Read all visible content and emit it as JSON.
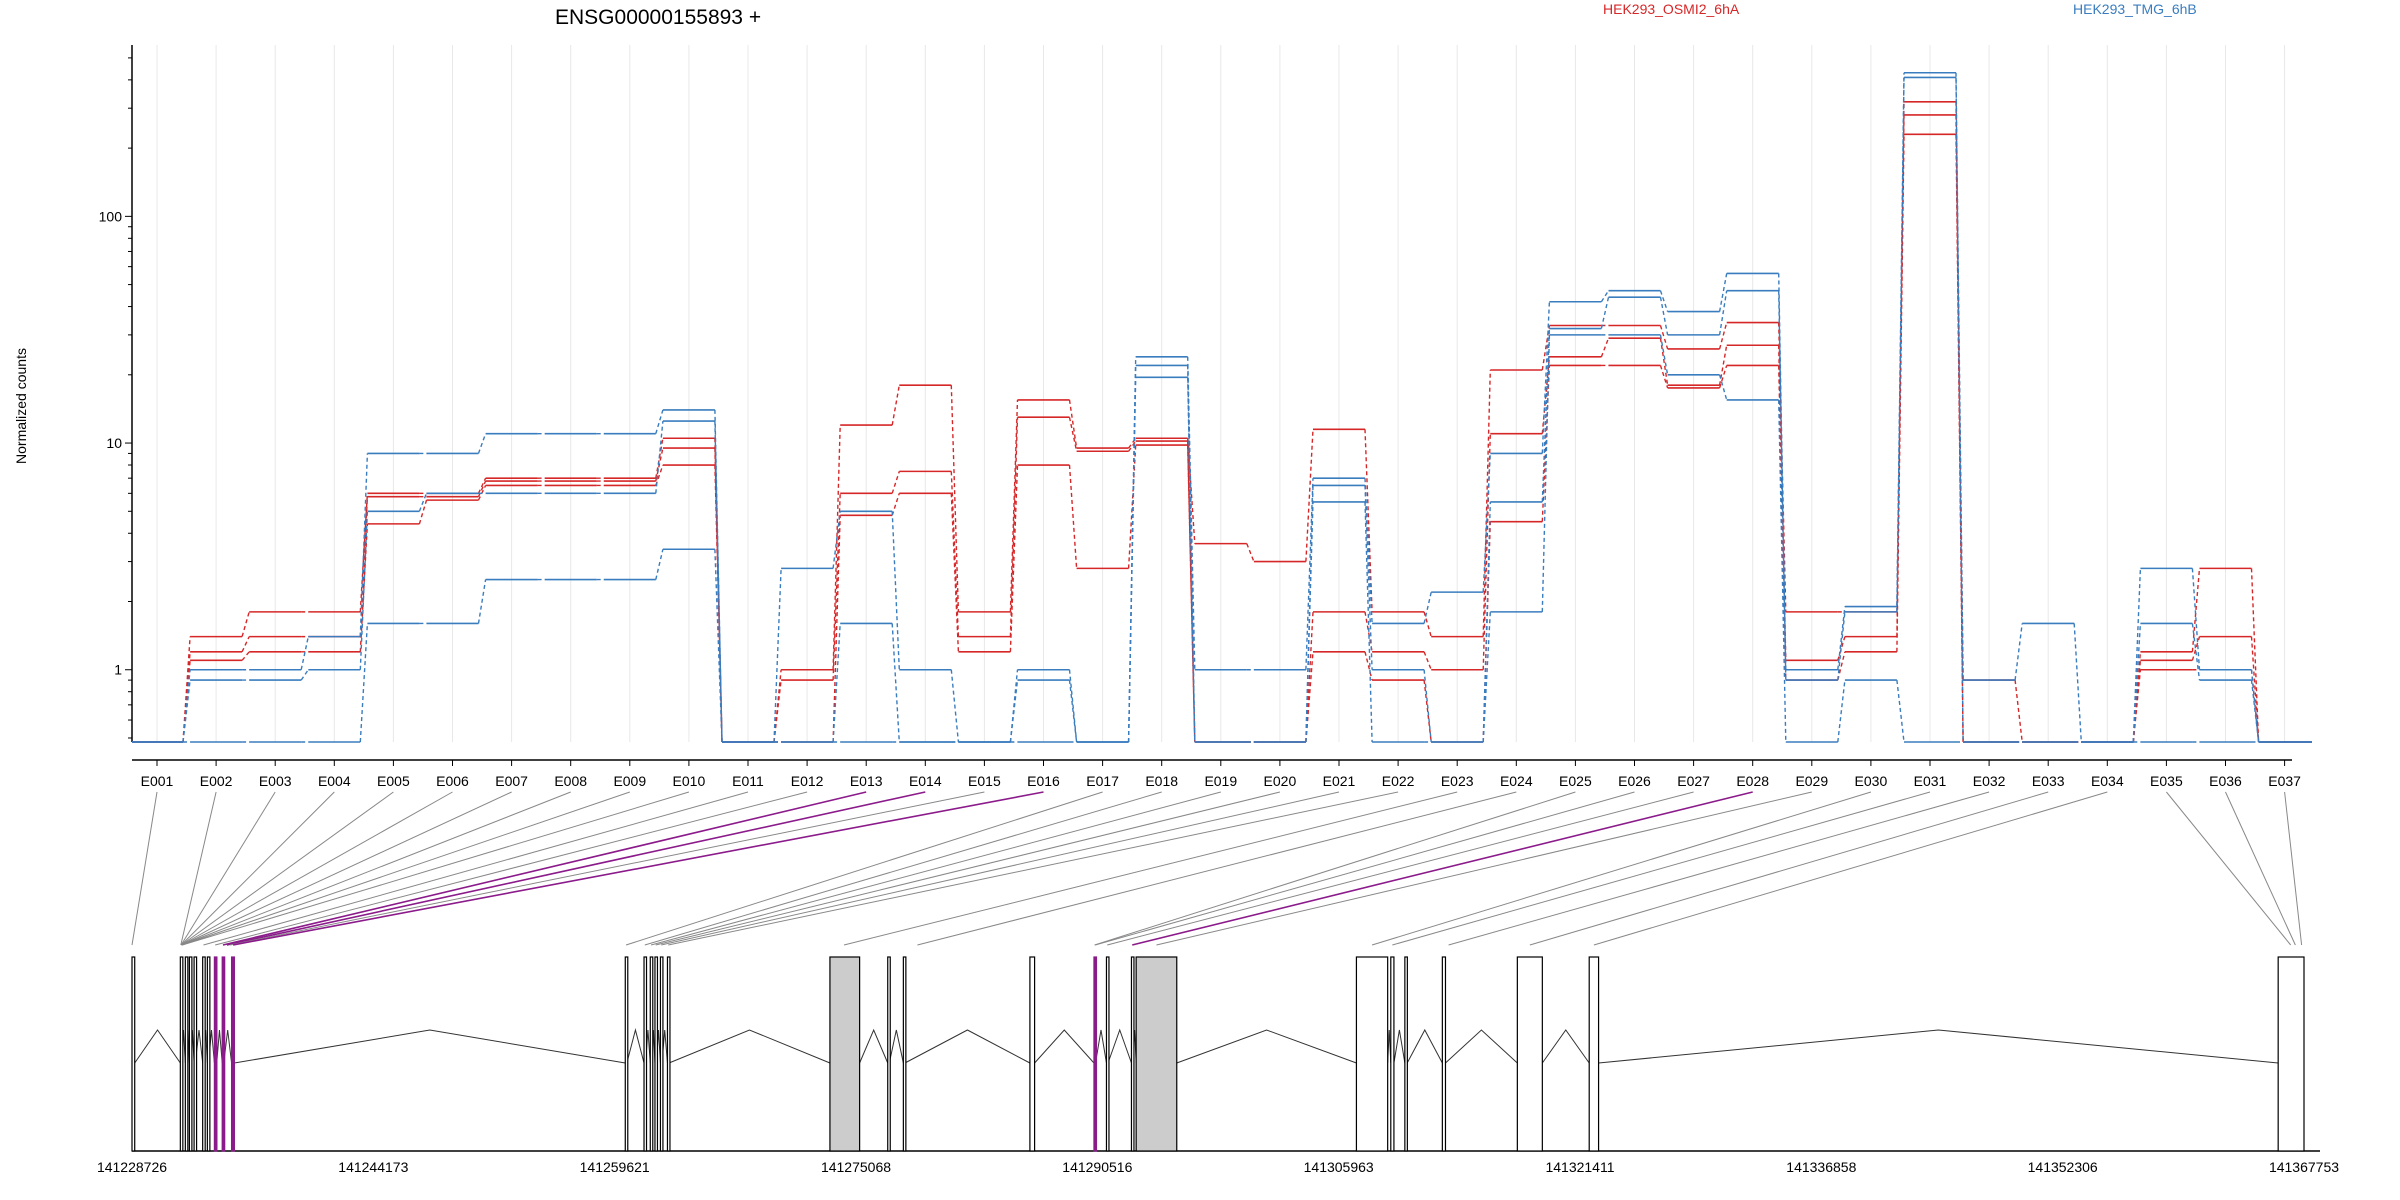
{
  "chart_data": {
    "type": "line",
    "title": "ENSG00000155893 +",
    "ylabel": "Normalized counts",
    "yscale": "log",
    "ylim": [
      0.48,
      570
    ],
    "yticks": [
      1,
      10,
      100
    ],
    "ytick_labels": [
      "1",
      "10",
      "100"
    ],
    "legend_position": "top",
    "colors": {
      "HEK293_OSMI2_6hA": "#d62728",
      "HEK293_TMG_6hB": "#3a7dbf",
      "highlight": "#8b1a8b",
      "grid": "#e8e8e8"
    },
    "categories": [
      "E001",
      "E002",
      "E003",
      "E004",
      "E005",
      "E006",
      "E007",
      "E008",
      "E009",
      "E010",
      "E011",
      "E012",
      "E013",
      "E014",
      "E015",
      "E016",
      "E017",
      "E018",
      "E019",
      "E020",
      "E021",
      "E022",
      "E023",
      "E024",
      "E025",
      "E026",
      "E027",
      "E028",
      "E029",
      "E030",
      "E031",
      "E032",
      "E033",
      "E034",
      "E035",
      "E036",
      "E037"
    ],
    "legend": [
      {
        "name": "HEK293_OSMI2_6hA",
        "color": "#d62728"
      },
      {
        "name": "HEK293_TMG_6hB",
        "color": "#3a7dbf"
      }
    ],
    "series": [
      {
        "group": "HEK293_OSMI2_6hA",
        "color": "#d62728",
        "values": [
          0.48,
          1.4,
          1.8,
          1.8,
          6.0,
          6.0,
          7.0,
          7.0,
          7.0,
          10.5,
          0.48,
          1.0,
          12.0,
          18.0,
          1.8,
          15.5,
          9.5,
          10.5,
          3.6,
          3.0,
          11.5,
          1.8,
          1.4,
          21.0,
          33.0,
          33.0,
          26.0,
          34.0,
          1.8,
          1.8,
          320,
          0.9,
          0.48,
          0.48,
          1.2,
          2.8,
          0.48
        ]
      },
      {
        "group": "HEK293_OSMI2_6hA",
        "color": "#d62728",
        "values": [
          0.48,
          1.2,
          1.4,
          1.4,
          5.8,
          5.8,
          6.8,
          6.8,
          6.8,
          9.5,
          0.48,
          0.9,
          6.0,
          7.5,
          1.4,
          13.0,
          9.2,
          10.2,
          0.48,
          0.48,
          1.8,
          1.2,
          1.0,
          11.0,
          24.0,
          29.0,
          18.0,
          27.0,
          1.1,
          1.4,
          280,
          0.48,
          0.48,
          0.48,
          1.1,
          1.4,
          0.48
        ]
      },
      {
        "group": "HEK293_OSMI2_6hA",
        "color": "#d62728",
        "values": [
          0.48,
          1.1,
          1.2,
          1.2,
          4.4,
          5.6,
          6.5,
          6.5,
          6.5,
          8.0,
          0.48,
          0.48,
          4.8,
          6.0,
          1.2,
          8.0,
          2.8,
          9.8,
          0.48,
          0.48,
          1.2,
          0.9,
          0.48,
          4.5,
          22.0,
          22.0,
          17.5,
          22.0,
          0.9,
          1.2,
          230,
          0.48,
          0.48,
          0.48,
          1.0,
          1.0,
          0.48
        ]
      },
      {
        "group": "HEK293_TMG_6hB",
        "color": "#3a7dbf",
        "values": [
          0.48,
          1.0,
          1.0,
          1.4,
          9.0,
          9.0,
          11.0,
          11.0,
          11.0,
          14.0,
          0.48,
          2.8,
          5.0,
          1.0,
          0.48,
          1.0,
          0.48,
          24.0,
          1.0,
          1.0,
          7.0,
          1.6,
          2.2,
          9.0,
          42.0,
          47.0,
          38.0,
          56.0,
          1.0,
          1.9,
          430,
          0.9,
          1.6,
          0.48,
          2.8,
          1.0,
          0.48
        ]
      },
      {
        "group": "HEK293_TMG_6hB",
        "color": "#3a7dbf",
        "values": [
          0.48,
          0.9,
          0.9,
          1.0,
          5.0,
          6.0,
          6.0,
          6.0,
          6.0,
          12.5,
          0.48,
          0.48,
          1.6,
          0.48,
          0.48,
          0.9,
          0.48,
          22.0,
          0.48,
          0.48,
          6.5,
          1.0,
          0.48,
          5.5,
          32.0,
          44.0,
          30.0,
          47.0,
          0.9,
          1.8,
          410,
          0.48,
          0.48,
          0.48,
          1.6,
          0.9,
          0.48
        ]
      },
      {
        "group": "HEK293_TMG_6hB",
        "color": "#3a7dbf",
        "values": [
          0.48,
          0.48,
          0.48,
          0.48,
          1.6,
          1.6,
          2.5,
          2.5,
          2.5,
          3.4,
          0.48,
          0.48,
          0.48,
          0.48,
          0.48,
          0.48,
          0.48,
          19.5,
          0.48,
          0.48,
          5.5,
          0.48,
          0.48,
          1.8,
          30.0,
          30.0,
          20.0,
          15.5,
          0.48,
          0.9,
          0.48,
          0.48,
          0.48,
          0.48,
          0.48,
          0.48,
          0.48
        ]
      }
    ],
    "highlighted_exons": [
      "E013",
      "E014",
      "E016",
      "E028"
    ],
    "coordinate_axis": {
      "range": [
        141228726,
        141367753
      ],
      "tick_labels": [
        "141228726",
        "141244173",
        "141259621",
        "141275068",
        "141290516",
        "141305963",
        "141321411",
        "141336858",
        "141352306",
        "141367753"
      ]
    },
    "gene_model": {
      "exon_coords": [
        [
          141228726,
          141228900
        ],
        [
          141231820,
          141231900
        ],
        [
          141232140,
          141232220
        ],
        [
          141232400,
          141232480
        ],
        [
          141232700,
          141232780
        ],
        [
          141233250,
          141233330
        ],
        [
          141233550,
          141233630
        ],
        [
          141234000,
          141234150
        ],
        [
          141234500,
          141234600
        ],
        [
          141235100,
          141235280
        ],
        [
          141260300,
          141260400
        ],
        [
          141261500,
          141261600
        ],
        [
          141261900,
          141262000
        ],
        [
          141262200,
          141262300
        ],
        [
          141262550,
          141262650
        ],
        [
          141263000,
          141263100
        ],
        [
          141273400,
          141275300
        ],
        [
          141277100,
          141277200
        ],
        [
          141278100,
          141278200
        ],
        [
          141286200,
          141286500
        ],
        [
          141290300,
          141290400
        ],
        [
          141291100,
          141291200
        ],
        [
          141292700,
          141292800
        ],
        [
          141293000,
          141295600
        ],
        [
          141307100,
          141309100
        ],
        [
          141309300,
          141309500
        ],
        [
          141310200,
          141310350
        ],
        [
          141312600,
          141312800
        ],
        [
          141317400,
          141319000
        ],
        [
          141322000,
          141322600
        ],
        [
          141366100,
          141367753
        ]
      ],
      "filled_exons": [
        16,
        23
      ],
      "highlighted_exons": [
        7,
        8,
        9,
        20
      ],
      "map_lines": [
        [
          141228726,
          0
        ],
        [
          141231850,
          1
        ],
        [
          141231870,
          2
        ],
        [
          141231880,
          3
        ],
        [
          141231890,
          4
        ],
        [
          141231900,
          5
        ],
        [
          141231910,
          6
        ],
        [
          141231920,
          7
        ],
        [
          141231930,
          8
        ],
        [
          141231940,
          9
        ],
        [
          141233300,
          10
        ],
        [
          141234050,
          11
        ],
        [
          141234550,
          12
        ],
        [
          141234800,
          13
        ],
        [
          141235000,
          14
        ],
        [
          141235200,
          15
        ],
        [
          141260350,
          16
        ],
        [
          141261550,
          17
        ],
        [
          141261950,
          18
        ],
        [
          141262250,
          19
        ],
        [
          141262600,
          20
        ],
        [
          141263050,
          21
        ],
        [
          141274300,
          22
        ],
        [
          141279000,
          23
        ],
        [
          141290340,
          24
        ],
        [
          141290380,
          25
        ],
        [
          141291150,
          26
        ],
        [
          141292750,
          27
        ],
        [
          141294300,
          28
        ],
        [
          141308100,
          29
        ],
        [
          141309400,
          30
        ],
        [
          141313000,
          31
        ],
        [
          141318200,
          32
        ],
        [
          141322300,
          33
        ],
        [
          141366900,
          34
        ],
        [
          141367200,
          35
        ],
        [
          141367600,
          36
        ]
      ]
    }
  }
}
